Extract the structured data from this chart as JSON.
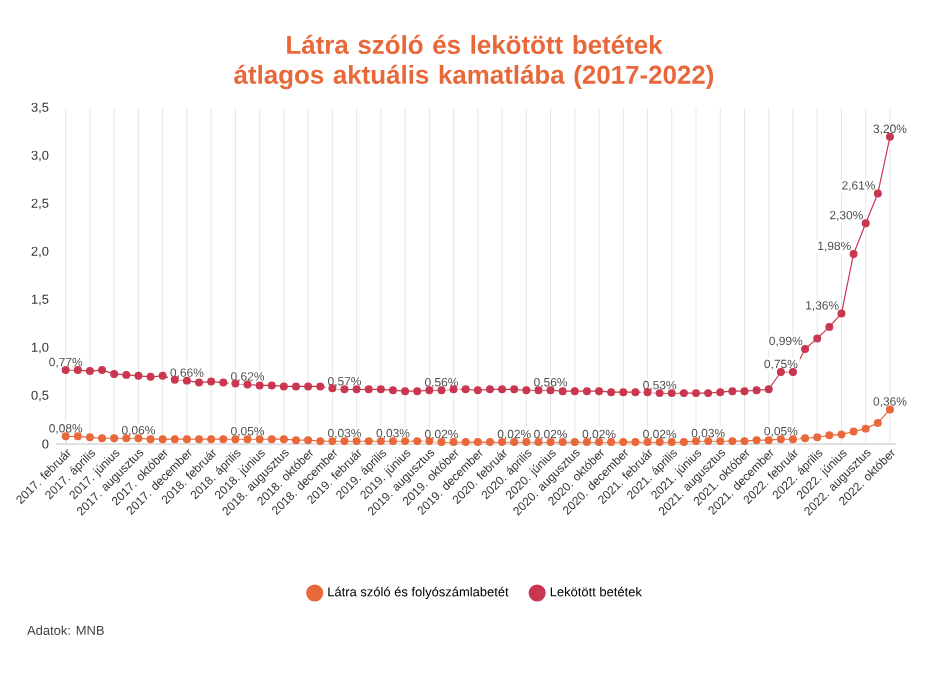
{
  "chart_data": {
    "type": "line",
    "title": "Látra szóló és lekötött betétek\nátlagos aktuális kamatlába (2017-2022)",
    "categories": [
      "2017. február",
      null,
      "2017. április",
      null,
      "2017. június",
      null,
      "2017. augusztus",
      null,
      "2017. október",
      null,
      "2017. december",
      null,
      "2018. február",
      null,
      "2018. április",
      null,
      "2018. június",
      null,
      "2018. augusztus",
      null,
      "2018. október",
      null,
      "2018. december",
      null,
      "2019. február",
      null,
      "2019. április",
      null,
      "2019. június",
      null,
      "2019. augusztus",
      null,
      "2019. október",
      null,
      "2019. december",
      null,
      "2020. február",
      null,
      "2020. április",
      null,
      "2020. június",
      null,
      "2020. augusztus",
      null,
      "2020. október",
      null,
      "2020. december",
      null,
      "2021. február",
      null,
      "2021. április",
      null,
      "2021. június",
      null,
      "2021. augusztus",
      null,
      "2021. október",
      null,
      "2021. december",
      null,
      "2022. február",
      null,
      "2022. április",
      null,
      "2022. június",
      null,
      "2022. augusztus",
      null,
      "2022. október"
    ],
    "series": [
      {
        "name": "Látra szóló és folyószámlabetét",
        "color": "#e8683a",
        "values": [
          0.08,
          0.08,
          0.07,
          0.06,
          0.06,
          0.06,
          0.06,
          0.05,
          0.05,
          0.05,
          0.05,
          0.05,
          0.05,
          0.05,
          0.05,
          0.05,
          0.05,
          0.05,
          0.05,
          0.04,
          0.04,
          0.03,
          0.03,
          0.03,
          0.03,
          0.03,
          0.03,
          0.03,
          0.03,
          0.03,
          0.03,
          0.02,
          0.02,
          0.02,
          0.02,
          0.02,
          0.02,
          0.02,
          0.02,
          0.02,
          0.02,
          0.02,
          0.02,
          0.02,
          0.02,
          0.02,
          0.02,
          0.02,
          0.02,
          0.02,
          0.02,
          0.02,
          0.03,
          0.03,
          0.03,
          0.03,
          0.03,
          0.04,
          0.04,
          0.05,
          0.05,
          0.06,
          0.07,
          0.09,
          0.1,
          0.13,
          0.16,
          0.22,
          0.36
        ],
        "value_labels": [
          "0,08%",
          null,
          null,
          null,
          null,
          null,
          "0,06%",
          null,
          null,
          null,
          null,
          null,
          null,
          null,
          null,
          "0,05%",
          null,
          null,
          null,
          null,
          null,
          null,
          null,
          "0,03%",
          null,
          null,
          null,
          "0,03%",
          null,
          null,
          null,
          "0,02%",
          null,
          null,
          null,
          null,
          null,
          "0,02%",
          null,
          null,
          "0,02%",
          null,
          null,
          null,
          "0,02%",
          null,
          null,
          null,
          null,
          "0,02%",
          null,
          null,
          null,
          "0,03%",
          null,
          null,
          null,
          null,
          null,
          "0,05%",
          null,
          null,
          null,
          null,
          null,
          null,
          null,
          null,
          "0,36%"
        ]
      },
      {
        "name": "Lekötött betétek",
        "color": "#c8374f",
        "values": [
          0.77,
          0.77,
          0.76,
          0.77,
          0.73,
          0.72,
          0.71,
          0.7,
          0.71,
          0.67,
          0.66,
          0.64,
          0.65,
          0.64,
          0.63,
          0.62,
          0.61,
          0.61,
          0.6,
          0.6,
          0.6,
          0.6,
          0.58,
          0.57,
          0.57,
          0.57,
          0.57,
          0.56,
          0.55,
          0.55,
          0.56,
          0.56,
          0.57,
          0.57,
          0.56,
          0.57,
          0.57,
          0.57,
          0.56,
          0.56,
          0.56,
          0.55,
          0.55,
          0.55,
          0.55,
          0.54,
          0.54,
          0.54,
          0.54,
          0.53,
          0.53,
          0.53,
          0.53,
          0.53,
          0.54,
          0.55,
          0.55,
          0.56,
          0.57,
          0.75,
          0.75,
          0.99,
          1.1,
          1.22,
          1.36,
          1.98,
          2.3,
          2.61,
          3.2
        ],
        "value_labels": [
          "0,77%",
          null,
          null,
          null,
          null,
          null,
          null,
          null,
          null,
          null,
          "0,66%",
          null,
          null,
          null,
          null,
          "0,62%",
          null,
          null,
          null,
          null,
          null,
          null,
          null,
          "0,57%",
          null,
          null,
          null,
          null,
          null,
          null,
          null,
          "0,56%",
          null,
          null,
          null,
          null,
          null,
          null,
          null,
          null,
          "0,56%",
          null,
          null,
          null,
          null,
          null,
          null,
          null,
          null,
          "0,53%",
          null,
          null,
          null,
          null,
          null,
          null,
          null,
          null,
          null,
          "0,75%",
          null,
          "0,99%",
          null,
          null,
          "1,36%",
          "1,98%",
          "2,30%",
          "2,61%",
          "3,20%"
        ]
      }
    ],
    "ylim": [
      0,
      3.5
    ],
    "yticks": [
      0,
      {
        "value": 0.5,
        "label": "0,5"
      },
      {
        "value": 1.0,
        "label": "1,0"
      },
      {
        "value": 1.5,
        "label": "1,5"
      },
      {
        "value": 2.0,
        "label": "2,0"
      },
      {
        "value": 2.5,
        "label": "2,5"
      },
      {
        "value": 3.0,
        "label": "3,0"
      },
      {
        "value": 3.5,
        "label": "3,5"
      }
    ],
    "grid": "x",
    "legend": "bottom",
    "marker": "circle",
    "line_style": "solid",
    "annotations": [
      "Adatok: MNB"
    ]
  }
}
